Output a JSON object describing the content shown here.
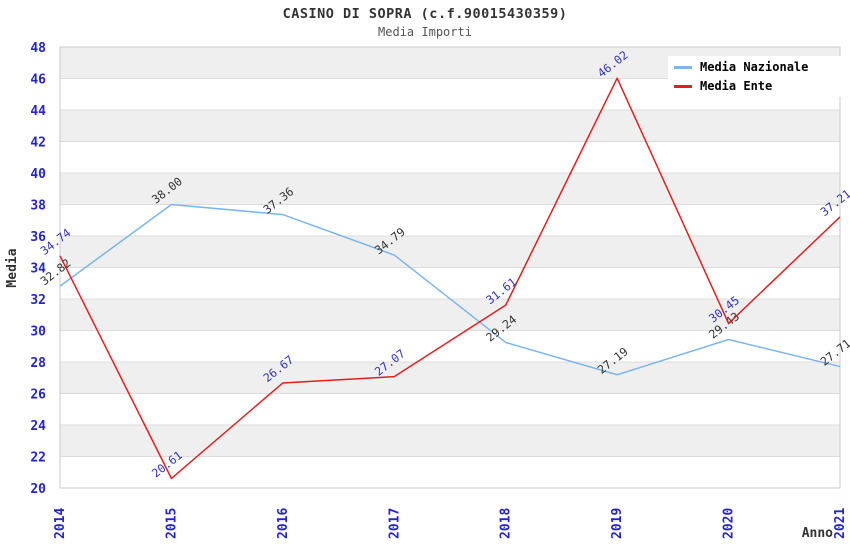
{
  "header": {
    "title": "CASINO DI SOPRA (c.f.90015430359)",
    "subtitle": "Media Importi"
  },
  "axes": {
    "x_label": "Anno",
    "y_label": "Media",
    "x_ticks": [
      "2014",
      "2015",
      "2016",
      "2017",
      "2018",
      "2019",
      "2020",
      "2021"
    ],
    "y_ticks": [
      20,
      22,
      24,
      26,
      28,
      30,
      32,
      34,
      36,
      38,
      40,
      42,
      44,
      46,
      48
    ]
  },
  "legend": {
    "position": "top-right",
    "items": [
      {
        "label": "Media Nazionale",
        "color": "#7cb5ec"
      },
      {
        "label": "Media Ente",
        "color": "#e02020"
      }
    ]
  },
  "colors": {
    "tick_label": "#2424cc",
    "axis_title": "#333333",
    "band_gray": "#efefef",
    "band_white": "#ffffff",
    "gridline": "#dcdcdc",
    "plot_border": "#c8c8c8",
    "label_nazionale": "#333333",
    "label_ente": "#3333bb"
  },
  "chart_data": {
    "type": "line",
    "title": "CASINO DI SOPRA (c.f.90015430359)",
    "subtitle": "Media Importi",
    "xlabel": "Anno",
    "ylabel": "Media",
    "categories": [
      "2014",
      "2015",
      "2016",
      "2017",
      "2018",
      "2019",
      "2020",
      "2021"
    ],
    "series": [
      {
        "name": "Media Nazionale",
        "color": "#7cb5ec",
        "label_color": "#333333",
        "values": [
          32.82,
          38.0,
          37.36,
          34.79,
          29.24,
          27.19,
          29.43,
          27.71
        ],
        "labels": [
          "32.82",
          "38.00",
          "37.36",
          "34.79",
          "29.24",
          "27.19",
          "29.43",
          "27.71"
        ]
      },
      {
        "name": "Media Ente",
        "color": "#e02020",
        "label_color": "#3333bb",
        "values": [
          34.74,
          20.61,
          26.67,
          27.07,
          31.61,
          46.02,
          30.45,
          37.21
        ],
        "labels": [
          "34.74",
          "20.61",
          "26.67",
          "27.07",
          "31.61",
          "46.02",
          "30.45",
          "37.21"
        ]
      }
    ],
    "ylim": [
      20,
      48
    ],
    "y_tick_step": 2,
    "grid": "horizontal gridlines with alternating gray/white bands",
    "legend_position": "top-right",
    "data_labels": "rotated -38deg above each point"
  }
}
